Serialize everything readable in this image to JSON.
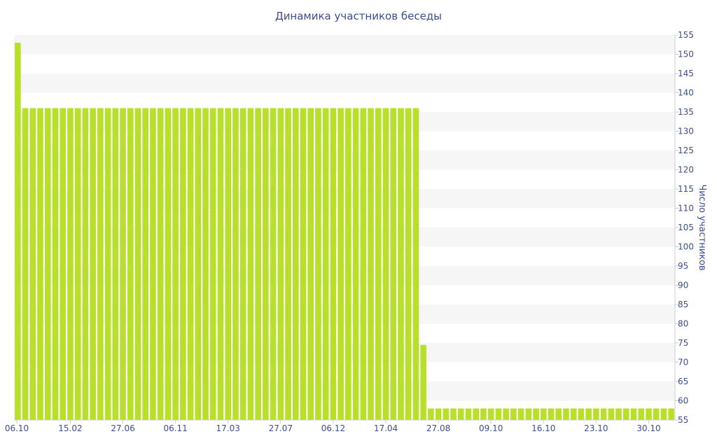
{
  "chart_data": {
    "type": "bar",
    "title": "Динамика участников беседы",
    "xlabel": "",
    "ylabel": "Число участников",
    "ylim": [
      55,
      155
    ],
    "y_ticks": [
      55,
      60,
      65,
      70,
      75,
      80,
      85,
      90,
      95,
      100,
      105,
      110,
      115,
      120,
      125,
      130,
      135,
      140,
      145,
      150,
      155
    ],
    "x_tick_labels": [
      "06.10",
      "15.02",
      "27.06",
      "06.11",
      "17.03",
      "27.07",
      "06.12",
      "17.04",
      "27.08",
      "09.10",
      "16.10",
      "23.10",
      "30.10"
    ],
    "y_axis_side": "right",
    "grid": "horizontal bands",
    "bar_color": "#b8e02a",
    "series": [
      {
        "values": [
          153,
          136,
          136,
          136,
          136,
          136,
          136,
          136,
          136,
          136,
          136,
          136,
          136,
          136,
          136,
          136,
          136,
          136,
          136,
          136,
          136,
          136,
          136,
          136,
          136,
          136,
          136,
          136,
          136,
          136,
          136,
          136,
          136,
          136,
          136,
          136,
          136,
          136,
          136,
          136,
          136,
          136,
          136,
          136,
          136,
          136,
          136,
          136,
          136,
          136,
          136,
          136,
          136,
          136,
          74.5,
          58,
          58,
          58,
          58,
          58,
          58,
          58,
          58,
          58,
          58,
          58,
          58,
          58,
          58,
          58,
          58,
          58,
          58,
          58,
          58,
          58,
          58,
          58,
          58,
          58,
          58,
          58,
          58,
          58,
          58,
          58,
          58,
          58
        ]
      }
    ]
  }
}
